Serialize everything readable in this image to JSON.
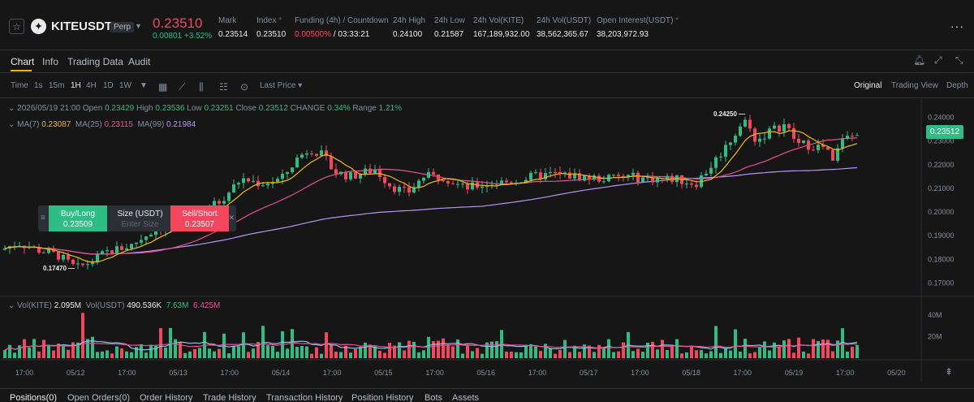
{
  "ticker": {
    "symbol": "KITEUSDT",
    "contract_type": "Perp",
    "last_price": "0.23510",
    "change": "0.00801 +3.52%",
    "stats": [
      {
        "label": "Mark",
        "value": "0.23514"
      },
      {
        "label": "Index",
        "value": "0.23510"
      },
      {
        "label": "Funding (4h) / Countdown",
        "value": "0.00500%",
        "value2": "/ 03:33:21"
      },
      {
        "label": "24h High",
        "value": "0.24100"
      },
      {
        "label": "24h Low",
        "value": "0.21587"
      },
      {
        "label": "24h Vol(KITE)",
        "value": "167,189,932.00"
      },
      {
        "label": "24h Vol(USDT)",
        "value": "38,562,365.67"
      },
      {
        "label": "Open Interest(USDT)",
        "value": "38,203,972.93"
      }
    ]
  },
  "tabs": [
    "Chart",
    "Info",
    "Trading Data",
    "Audit"
  ],
  "toolbar": {
    "intervals": [
      "Time",
      "1s",
      "15m",
      "1H",
      "4H",
      "1D",
      "1W"
    ],
    "active_interval": "1H",
    "price_mode": "Last Price",
    "views": [
      "Original",
      "Trading View",
      "Depth"
    ],
    "active_view": "Original"
  },
  "ohlc": {
    "date": "2026/05/19 21:00",
    "open_label": "Open",
    "open": "0.23429",
    "high_label": "High",
    "high": "0.23536",
    "low_label": "Low",
    "low": "0.23251",
    "close_label": "Close",
    "close": "0.23512",
    "change_label": "CHANGE",
    "change": "0.34%",
    "range_label": "Range",
    "range": "1.21%"
  },
  "ma": {
    "ma7_label": "MA(7)",
    "ma7": "0.23087",
    "ma25_label": "MA(25)",
    "ma25": "0.23115",
    "ma99_label": "MA(99)",
    "ma99": "0.21984"
  },
  "volume": {
    "kite_label": "Vol(KITE)",
    "kite": "2.095M",
    "usdt_label": "Vol(USDT)",
    "usdt": "490.536K",
    "ma1": "7.63M",
    "ma2": "6.425M"
  },
  "order_widget": {
    "buy_label": "Buy/Long",
    "buy_price": "0.23509",
    "size_label": "Size (USDT)",
    "size_placeholder": "Enter Size",
    "sell_label": "Sell/Short",
    "sell_price": "0.23507"
  },
  "annotations": {
    "high": "0.24250",
    "low": "0.17470"
  },
  "current_price_tag": "0.23512",
  "colors": {
    "up": "#2ebd85",
    "down": "#f6465d",
    "ma7": "#f0b90b",
    "ma25": "#ec4f91",
    "ma99": "#b495f5"
  },
  "chart_data": {
    "type": "candlestick",
    "price_axis": [
      "0.24000",
      "0.23000",
      "0.22000",
      "0.21000",
      "0.20000",
      "0.19000",
      "0.18000",
      "0.17000"
    ],
    "volume_axis": [
      "40M",
      "20M"
    ],
    "time_axis": [
      "17:00",
      "05/12",
      "17:00",
      "05/13",
      "17:00",
      "05/14",
      "17:00",
      "05/15",
      "17:00",
      "05/16",
      "17:00",
      "05/17",
      "17:00",
      "05/18",
      "17:00",
      "05/19",
      "17:00",
      "05/20"
    ],
    "ylim": [
      0.166,
      0.244
    ],
    "vol_ylim": [
      0,
      46
    ]
  },
  "bottom_tabs": [
    "Positions(0)",
    "Open Orders(0)",
    "Order History",
    "Trade History",
    "Transaction History",
    "Position History",
    "Bots",
    "Assets"
  ]
}
